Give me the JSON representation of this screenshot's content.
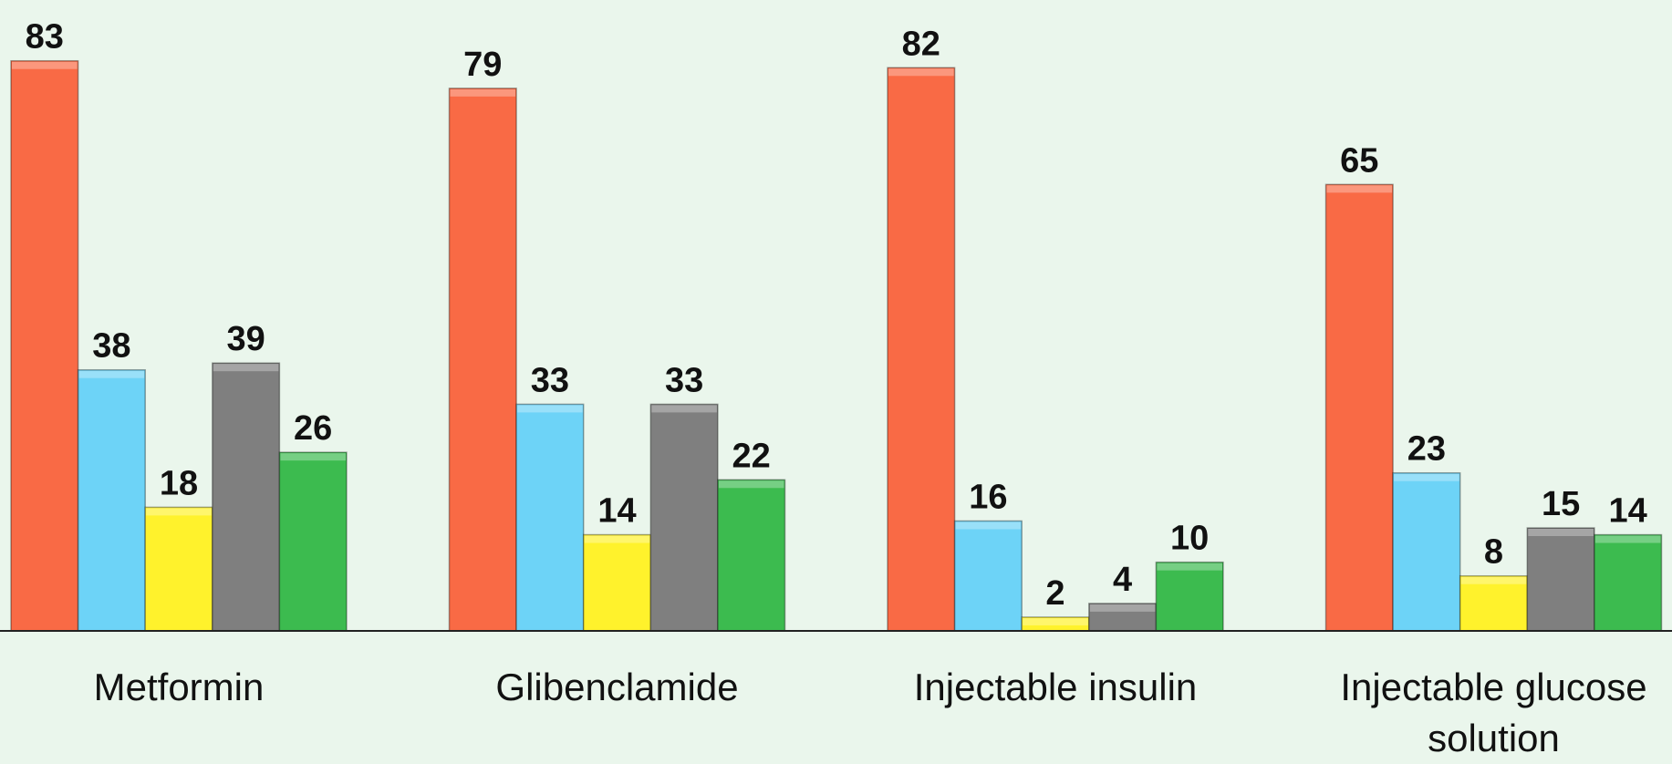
{
  "chart_data": {
    "type": "bar",
    "categories": [
      "Metformin",
      "Glibenclamide",
      "Injectable insulin",
      "Injectable glucose solution"
    ],
    "series": [
      {
        "color": "#f96a45",
        "values": [
          83,
          79,
          82,
          65
        ]
      },
      {
        "color": "#6dd3f7",
        "values": [
          38,
          33,
          16,
          23
        ]
      },
      {
        "color": "#fff22c",
        "values": [
          18,
          14,
          2,
          8
        ]
      },
      {
        "color": "#7f7f7f",
        "values": [
          39,
          33,
          4,
          15
        ]
      },
      {
        "color": "#3cbb4f",
        "values": [
          26,
          22,
          10,
          14
        ]
      }
    ],
    "ylim": [
      0,
      90
    ]
  }
}
